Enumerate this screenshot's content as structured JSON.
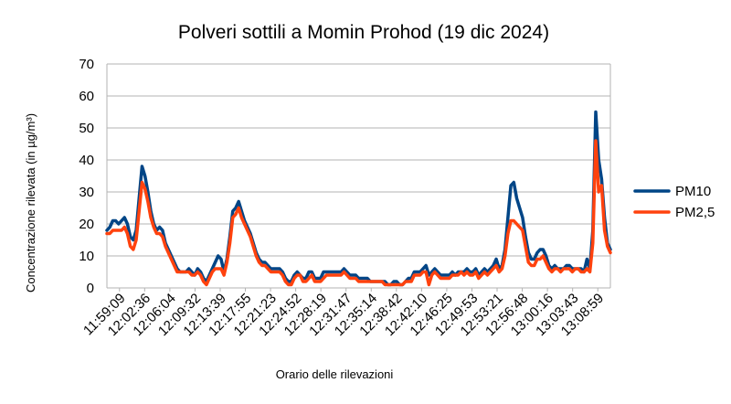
{
  "chart_data": {
    "type": "line",
    "title": "Polveri sottili a Momin Prohod (19 dic 2024)",
    "xlabel": "Orario delle rilevazioni",
    "ylabel": "Concentrazione rilevata (in µg/m³)",
    "ylim": [
      0,
      70
    ],
    "y_ticks": [
      0,
      10,
      20,
      30,
      40,
      50,
      60,
      70
    ],
    "grid": "horizontal",
    "legend_position": "right",
    "x_tick_labels": [
      "11:59:09",
      "12:02:36",
      "12:06:04",
      "12:09:32",
      "12:13:39",
      "12:17:55",
      "12:21:23",
      "12:24:52",
      "12:28:19",
      "12:31:47",
      "12:35:14",
      "12:38:42",
      "12:42:10",
      "12:46:25",
      "12:49:53",
      "12:53:21",
      "12:56:48",
      "13:00:16",
      "13:03:43",
      "13:08:59"
    ],
    "series": [
      {
        "name": "PM10",
        "color": "#004586",
        "values": [
          18,
          19,
          21,
          21,
          20,
          21,
          22,
          20,
          16,
          15,
          18,
          28,
          38,
          35,
          30,
          24,
          20,
          18,
          19,
          18,
          14,
          12,
          10,
          8,
          6,
          5,
          5,
          5,
          6,
          5,
          4,
          6,
          5,
          3,
          2,
          4,
          6,
          8,
          10,
          9,
          5,
          9,
          16,
          24,
          25,
          27,
          24,
          21,
          19,
          17,
          14,
          11,
          9,
          8,
          8,
          7,
          6,
          6,
          6,
          6,
          5,
          3,
          2,
          2,
          4,
          5,
          4,
          3,
          3,
          5,
          5,
          3,
          3,
          3,
          5,
          5,
          5,
          5,
          5,
          5,
          5,
          6,
          5,
          4,
          4,
          4,
          3,
          3,
          3,
          3,
          2,
          2,
          2,
          2,
          2,
          2,
          1,
          1,
          2,
          2,
          1,
          1,
          2,
          3,
          3,
          5,
          5,
          5,
          6,
          7,
          4,
          5,
          6,
          5,
          4,
          4,
          4,
          4,
          5,
          4,
          5,
          5,
          5,
          6,
          5,
          5,
          6,
          4,
          5,
          6,
          5,
          6,
          7,
          9,
          6,
          7,
          12,
          22,
          32,
          33,
          28,
          25,
          22,
          16,
          11,
          9,
          9,
          11,
          12,
          12,
          10,
          7,
          6,
          7,
          6,
          6,
          6,
          7,
          7,
          6,
          6,
          6,
          6,
          5,
          9,
          6,
          18,
          55,
          40,
          34,
          22,
          14,
          12
        ]
      },
      {
        "name": "PM2,5",
        "color": "#ff420e",
        "values": [
          17,
          17,
          18,
          18,
          18,
          18,
          19,
          17,
          13,
          12,
          15,
          24,
          33,
          31,
          27,
          22,
          19,
          17,
          17,
          16,
          13,
          11,
          9,
          7,
          5,
          5,
          5,
          5,
          5,
          4,
          4,
          5,
          4,
          2,
          1,
          3,
          5,
          6,
          6,
          6,
          4,
          8,
          14,
          22,
          23,
          25,
          22,
          20,
          18,
          16,
          13,
          10,
          8,
          7,
          7,
          6,
          5,
          5,
          5,
          5,
          4,
          2,
          1,
          1,
          3,
          4,
          4,
          2,
          2,
          3,
          4,
          2,
          2,
          2,
          3,
          4,
          4,
          4,
          4,
          4,
          4,
          5,
          4,
          3,
          3,
          3,
          2,
          2,
          2,
          2,
          2,
          2,
          2,
          2,
          2,
          1,
          1,
          1,
          1,
          1,
          1,
          1,
          2,
          2,
          2,
          4,
          4,
          4,
          5,
          5,
          1,
          4,
          5,
          4,
          3,
          3,
          3,
          3,
          4,
          4,
          4,
          5,
          4,
          5,
          4,
          4,
          5,
          3,
          4,
          5,
          4,
          5,
          6,
          7,
          5,
          6,
          10,
          17,
          21,
          21,
          20,
          19,
          18,
          13,
          8,
          7,
          7,
          9,
          9,
          10,
          8,
          6,
          5,
          6,
          6,
          5,
          6,
          6,
          6,
          5,
          6,
          6,
          5,
          5,
          6,
          5,
          14,
          46,
          30,
          32,
          18,
          13,
          11
        ]
      }
    ]
  }
}
